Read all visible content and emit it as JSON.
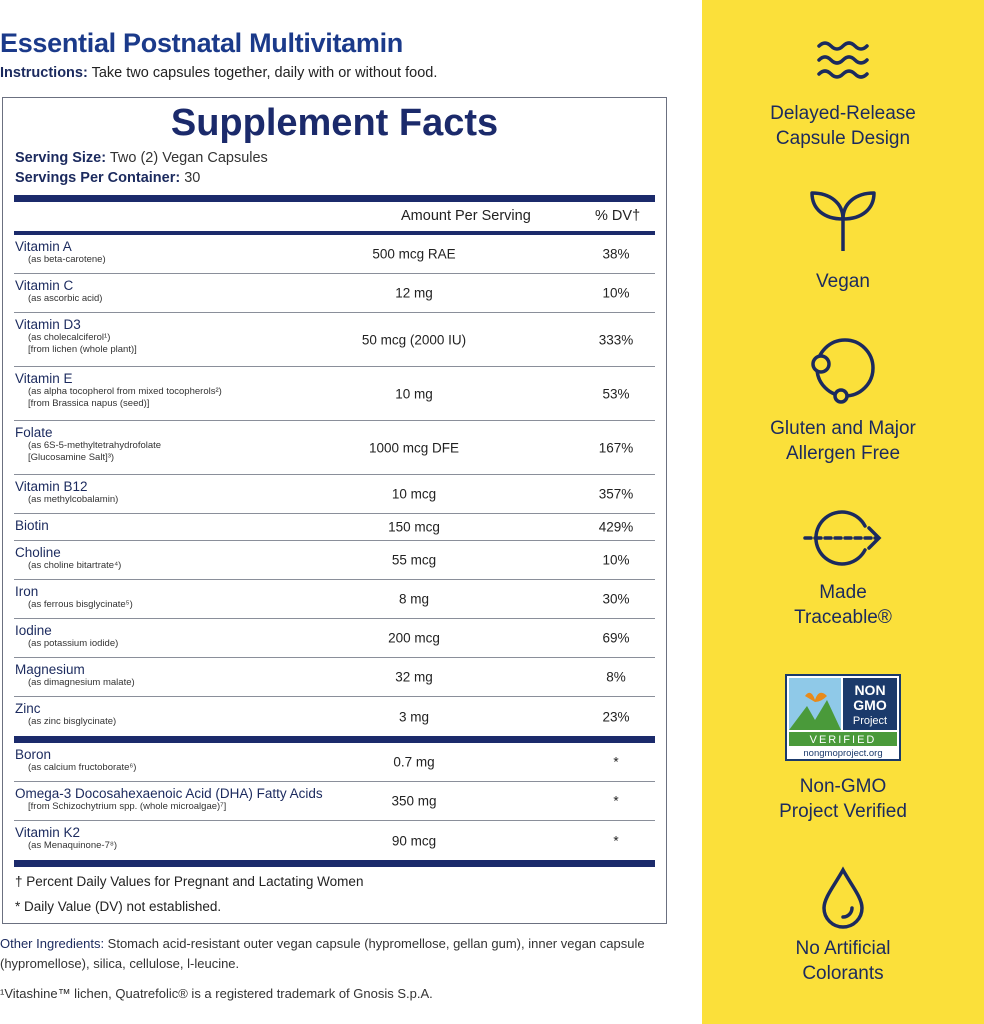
{
  "title": "Essential Postnatal Multivitamin",
  "instructions": {
    "label": "Instructions:",
    "text": " Take two capsules together, daily with or without food."
  },
  "facts": {
    "heading": "Supplement Facts",
    "serving_size_label": "Serving Size:",
    "serving_size": " Two (2) Vegan Capsules",
    "servings_label": "Servings Per Container:",
    "servings": " 30",
    "col_amount": "Amount Per Serving",
    "col_dv": "% DV†",
    "groups": [
      [
        {
          "name": "Vitamin A",
          "sub": [
            "(as beta-carotene)"
          ],
          "amount": "500 mcg RAE",
          "dv": "38%"
        },
        {
          "name": "Vitamin C",
          "sub": [
            "(as ascorbic acid)"
          ],
          "amount": "12 mg",
          "dv": "10%"
        },
        {
          "name": "Vitamin D3",
          "sub": [
            "(as cholecalciferol¹)",
            "[from lichen (whole plant)]"
          ],
          "amount": "50 mcg (2000 IU)",
          "dv": "333%"
        },
        {
          "name": "Vitamin E",
          "sub": [
            "(as alpha tocopherol from mixed tocopherols²)",
            "[from Brassica napus (seed)]"
          ],
          "amount": "10 mg",
          "dv": "53%"
        },
        {
          "name": "Folate",
          "sub": [
            "(as 6S-5-methyltetrahydrofolate",
            "[Glucosamine Salt]³)"
          ],
          "amount": "1000 mcg DFE",
          "dv": "167%"
        },
        {
          "name": "Vitamin B12",
          "sub": [
            "(as methylcobalamin)"
          ],
          "amount": "10 mcg",
          "dv": "357%"
        },
        {
          "name": "Biotin",
          "sub": [],
          "amount": "150 mcg",
          "dv": "429%"
        },
        {
          "name": "Choline",
          "sub": [
            "(as choline bitartrate⁴)"
          ],
          "amount": "55 mcg",
          "dv": "10%"
        },
        {
          "name": "Iron",
          "sub": [
            "(as ferrous bisglycinate⁵)"
          ],
          "amount": "8 mg",
          "dv": "30%"
        },
        {
          "name": "Iodine",
          "sub": [
            "(as potassium iodide)"
          ],
          "amount": "200 mcg",
          "dv": "69%"
        },
        {
          "name": "Magnesium",
          "sub": [
            "(as dimagnesium malate)"
          ],
          "amount": "32 mg",
          "dv": "8%"
        },
        {
          "name": "Zinc",
          "sub": [
            "(as zinc bisglycinate)"
          ],
          "amount": "3 mg",
          "dv": "23%"
        }
      ],
      [
        {
          "name": "Boron",
          "sub": [
            "(as calcium fructoborate⁶)"
          ],
          "amount": "0.7 mg",
          "dv": "*"
        },
        {
          "name": "Omega-3 Docosahexaenoic Acid (DHA) Fatty Acids",
          "sub": [
            "[from Schizochytrium spp. (whole microalgae)⁷]"
          ],
          "amount": "350 mg",
          "dv": "*"
        },
        {
          "name": "Vitamin K2",
          "sub": [
            "(as Menaquinone-7⁸)"
          ],
          "amount": "90 mcg",
          "dv": "*"
        }
      ]
    ],
    "footnote1": "† Percent Daily Values for Pregnant and Lactating Women",
    "footnote2": "* Daily Value (DV) not established."
  },
  "other": {
    "label": "Other Ingredients:",
    "text": " Stomach acid-resistant outer vegan capsule (hypromellose, gellan gum), inner vegan capsule (hypromellose), silica, cellulose, l-leucine."
  },
  "trademark": "¹Vitashine™ lichen, Quatrefolic® is a registered trademark of Gnosis S.p.A.",
  "features": [
    {
      "icon": "waves-icon",
      "line1": "Delayed-Release",
      "line2": "Capsule Design"
    },
    {
      "icon": "sprout-icon",
      "line1": "Vegan",
      "line2": ""
    },
    {
      "icon": "allergen-free-icon",
      "line1": "Gluten and Major",
      "line2": "Allergen Free"
    },
    {
      "icon": "traceable-arrow-icon",
      "line1": "Made",
      "line2": "Traceable®"
    },
    {
      "icon": "non-gmo-logo",
      "line1": "Non-GMO",
      "line2": "Project Verified",
      "logo_text": [
        "NON",
        "GMO",
        "Project",
        "VERIFIED",
        "nongmoproject.org"
      ]
    },
    {
      "icon": "droplet-icon",
      "line1": "No Artificial",
      "line2": "Colorants"
    }
  ],
  "colors": {
    "navy": "#1b2a6b",
    "yellow": "#fbe03a"
  }
}
